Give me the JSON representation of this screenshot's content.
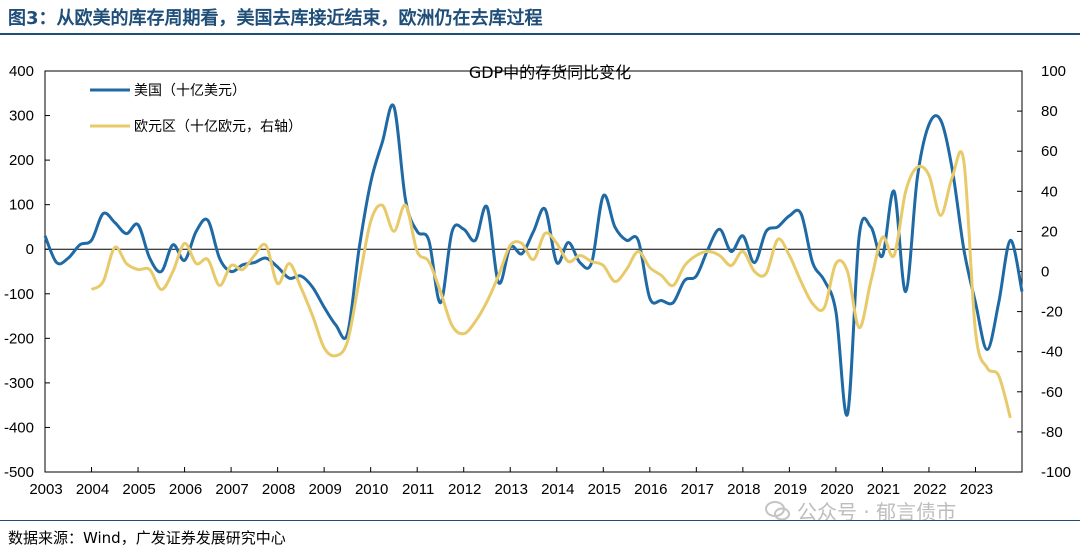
{
  "figure": {
    "title": "图3：从欧美的库存周期看，美国去库接近结束，欧洲仍在去库过程",
    "source": "数据来源：Wind，广发证券发展研究中心",
    "watermark": "公众号 · 郁言债市",
    "watermark_icon": "wechat-icon"
  },
  "chart_data": {
    "type": "line",
    "title": "GDP中的存货同比变化",
    "x_ticks": [
      "2003",
      "2004",
      "2005",
      "2006",
      "2007",
      "2008",
      "2009",
      "2010",
      "2011",
      "2012",
      "2013",
      "2014",
      "2015",
      "2016",
      "2017",
      "2018",
      "2019",
      "2020",
      "2021",
      "2022",
      "2023"
    ],
    "y_left": {
      "min": -500,
      "max": 400,
      "ticks": [
        400,
        300,
        200,
        100,
        0,
        -100,
        -200,
        -300,
        -400,
        -500
      ]
    },
    "y_right": {
      "min": -100,
      "max": 100,
      "ticks": [
        100,
        80,
        60,
        40,
        20,
        0,
        -20,
        -40,
        -60,
        -80,
        -100
      ]
    },
    "legend_position": "top-left",
    "series": [
      {
        "name": "美国（十亿美元）",
        "axis": "left",
        "color": "#1f6aa5",
        "points": [
          [
            2003.0,
            30
          ],
          [
            2003.25,
            -30
          ],
          [
            2003.5,
            -20
          ],
          [
            2003.75,
            10
          ],
          [
            2004.0,
            20
          ],
          [
            2004.25,
            80
          ],
          [
            2004.5,
            60
          ],
          [
            2004.75,
            35
          ],
          [
            2005.0,
            55
          ],
          [
            2005.25,
            -20
          ],
          [
            2005.5,
            -50
          ],
          [
            2005.75,
            10
          ],
          [
            2006.0,
            -25
          ],
          [
            2006.25,
            40
          ],
          [
            2006.5,
            65
          ],
          [
            2006.75,
            -20
          ],
          [
            2007.0,
            -50
          ],
          [
            2007.25,
            -35
          ],
          [
            2007.5,
            -30
          ],
          [
            2007.75,
            -20
          ],
          [
            2008.0,
            -40
          ],
          [
            2008.25,
            -65
          ],
          [
            2008.5,
            -60
          ],
          [
            2008.75,
            -85
          ],
          [
            2009.0,
            -130
          ],
          [
            2009.25,
            -170
          ],
          [
            2009.5,
            -190
          ],
          [
            2009.75,
            0
          ],
          [
            2010.0,
            150
          ],
          [
            2010.25,
            240
          ],
          [
            2010.5,
            320
          ],
          [
            2010.75,
            110
          ],
          [
            2011.0,
            40
          ],
          [
            2011.25,
            20
          ],
          [
            2011.5,
            -120
          ],
          [
            2011.75,
            40
          ],
          [
            2012.0,
            45
          ],
          [
            2012.25,
            20
          ],
          [
            2012.5,
            95
          ],
          [
            2012.75,
            -75
          ],
          [
            2013.0,
            5
          ],
          [
            2013.25,
            -10
          ],
          [
            2013.5,
            40
          ],
          [
            2013.75,
            90
          ],
          [
            2014.0,
            -30
          ],
          [
            2014.25,
            15
          ],
          [
            2014.5,
            -30
          ],
          [
            2014.75,
            -30
          ],
          [
            2015.0,
            120
          ],
          [
            2015.25,
            50
          ],
          [
            2015.5,
            20
          ],
          [
            2015.75,
            20
          ],
          [
            2016.0,
            -110
          ],
          [
            2016.25,
            -115
          ],
          [
            2016.5,
            -120
          ],
          [
            2016.75,
            -70
          ],
          [
            2017.0,
            -60
          ],
          [
            2017.25,
            0
          ],
          [
            2017.5,
            45
          ],
          [
            2017.75,
            -5
          ],
          [
            2018.0,
            30
          ],
          [
            2018.25,
            -30
          ],
          [
            2018.5,
            40
          ],
          [
            2018.75,
            50
          ],
          [
            2019.0,
            75
          ],
          [
            2019.25,
            80
          ],
          [
            2019.5,
            -30
          ],
          [
            2019.75,
            -70
          ],
          [
            2020.0,
            -140
          ],
          [
            2020.25,
            -370
          ],
          [
            2020.5,
            30
          ],
          [
            2020.75,
            50
          ],
          [
            2021.0,
            -15
          ],
          [
            2021.25,
            130
          ],
          [
            2021.5,
            -95
          ],
          [
            2021.75,
            160
          ],
          [
            2022.0,
            280
          ],
          [
            2022.25,
            290
          ],
          [
            2022.5,
            180
          ],
          [
            2022.75,
            0
          ],
          [
            2023.0,
            -120
          ],
          [
            2023.25,
            -225
          ],
          [
            2023.5,
            -120
          ],
          [
            2023.75,
            20
          ],
          [
            2024.0,
            -95
          ]
        ]
      },
      {
        "name": "欧元区（十亿欧元，右轴）",
        "axis": "right",
        "color": "#e8ca6a",
        "points": [
          [
            2004.0,
            -9
          ],
          [
            2004.25,
            -5
          ],
          [
            2004.5,
            12
          ],
          [
            2004.75,
            4
          ],
          [
            2005.0,
            1
          ],
          [
            2005.25,
            1
          ],
          [
            2005.5,
            -9
          ],
          [
            2005.75,
            0
          ],
          [
            2006.0,
            14
          ],
          [
            2006.25,
            4
          ],
          [
            2006.5,
            6
          ],
          [
            2006.75,
            -7
          ],
          [
            2007.0,
            3
          ],
          [
            2007.25,
            1
          ],
          [
            2007.5,
            8
          ],
          [
            2007.75,
            13
          ],
          [
            2008.0,
            -6
          ],
          [
            2008.25,
            4
          ],
          [
            2008.5,
            -8
          ],
          [
            2008.75,
            -22
          ],
          [
            2009.0,
            -38
          ],
          [
            2009.25,
            -42
          ],
          [
            2009.5,
            -35
          ],
          [
            2009.75,
            -5
          ],
          [
            2010.0,
            25
          ],
          [
            2010.25,
            33
          ],
          [
            2010.5,
            20
          ],
          [
            2010.75,
            33
          ],
          [
            2011.0,
            10
          ],
          [
            2011.25,
            5
          ],
          [
            2011.5,
            -10
          ],
          [
            2011.75,
            -27
          ],
          [
            2012.0,
            -31
          ],
          [
            2012.25,
            -25
          ],
          [
            2012.5,
            -15
          ],
          [
            2012.75,
            -2
          ],
          [
            2013.0,
            13
          ],
          [
            2013.25,
            14
          ],
          [
            2013.5,
            6
          ],
          [
            2013.75,
            19
          ],
          [
            2014.0,
            14
          ],
          [
            2014.25,
            5
          ],
          [
            2014.5,
            8
          ],
          [
            2014.75,
            5
          ],
          [
            2015.0,
            3
          ],
          [
            2015.25,
            -5
          ],
          [
            2015.5,
            1
          ],
          [
            2015.75,
            10
          ],
          [
            2016.0,
            2
          ],
          [
            2016.25,
            -2
          ],
          [
            2016.5,
            -7
          ],
          [
            2016.75,
            3
          ],
          [
            2017.0,
            8
          ],
          [
            2017.25,
            10
          ],
          [
            2017.5,
            8
          ],
          [
            2017.75,
            3
          ],
          [
            2018.0,
            10
          ],
          [
            2018.25,
            0
          ],
          [
            2018.5,
            -1
          ],
          [
            2018.75,
            16
          ],
          [
            2019.0,
            8
          ],
          [
            2019.25,
            -5
          ],
          [
            2019.5,
            -16
          ],
          [
            2019.75,
            -18
          ],
          [
            2020.0,
            4
          ],
          [
            2020.25,
            0
          ],
          [
            2020.5,
            -28
          ],
          [
            2020.75,
            -5
          ],
          [
            2021.0,
            17
          ],
          [
            2021.25,
            8
          ],
          [
            2021.5,
            40
          ],
          [
            2021.75,
            52
          ],
          [
            2022.0,
            48
          ],
          [
            2022.25,
            28
          ],
          [
            2022.5,
            47
          ],
          [
            2022.75,
            55
          ],
          [
            2023.0,
            -30
          ],
          [
            2023.25,
            -48
          ],
          [
            2023.5,
            -52
          ],
          [
            2023.75,
            -73
          ]
        ]
      }
    ]
  }
}
